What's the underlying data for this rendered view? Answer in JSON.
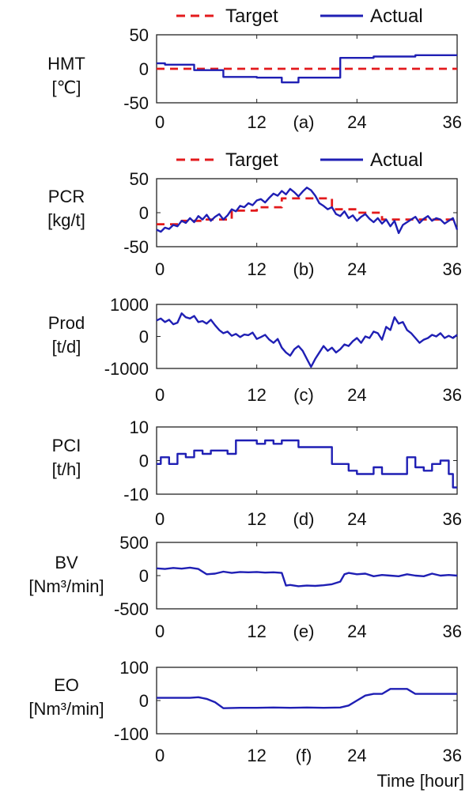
{
  "figure": {
    "x_axis_label": "Time [hour]"
  },
  "chart_data": [
    {
      "type": "line",
      "panel_label": "(a)",
      "ylabel_lines": [
        "HMT",
        "[℃]"
      ],
      "x_ticks": [
        "0",
        "12",
        "24",
        "36"
      ],
      "y_ticks": [
        "50",
        "0",
        "-50"
      ],
      "y_tick_values": [
        50,
        0,
        -50
      ],
      "xlim": [
        0,
        36
      ],
      "ylim": [
        -50,
        50
      ],
      "legend": {
        "position": "top",
        "entries": [
          "Target",
          "Actual"
        ]
      },
      "series": [
        {
          "name": "Target",
          "color": "#e31a1c",
          "style": "dashed",
          "x": [
            0,
            36
          ],
          "y": [
            0,
            0
          ]
        },
        {
          "name": "Actual",
          "color": "#1f1fb4",
          "style": "solid",
          "x": [
            0,
            1,
            1,
            4.5,
            4.5,
            8,
            8,
            12,
            12,
            15,
            15,
            17,
            17,
            22,
            22,
            26,
            26,
            31,
            31,
            36
          ],
          "y": [
            8,
            8,
            6,
            6,
            -2,
            -2,
            -12,
            -12,
            -13,
            -13,
            -20,
            -20,
            -13,
            -13,
            16,
            16,
            18,
            18,
            20,
            20
          ]
        }
      ]
    },
    {
      "type": "line",
      "panel_label": "(b)",
      "ylabel_lines": [
        "PCR",
        "[kg/t]"
      ],
      "x_ticks": [
        "0",
        "12",
        "24",
        "36"
      ],
      "y_ticks": [
        "50",
        "0",
        "-50"
      ],
      "y_tick_values": [
        50,
        0,
        -50
      ],
      "xlim": [
        0,
        36
      ],
      "ylim": [
        -50,
        50
      ],
      "legend": {
        "position": "top",
        "entries": [
          "Target",
          "Actual"
        ]
      },
      "series": [
        {
          "name": "Target",
          "color": "#e31a1c",
          "style": "dashed",
          "x": [
            0,
            3,
            3,
            6,
            6,
            9,
            9,
            12,
            12,
            15,
            15,
            21,
            21,
            24,
            24,
            27,
            27,
            36
          ],
          "y": [
            -17,
            -17,
            -12,
            -12,
            -10,
            -10,
            3,
            3,
            8,
            8,
            21,
            21,
            5,
            5,
            0,
            0,
            -10,
            -10
          ]
        },
        {
          "name": "Actual",
          "color": "#1f1fb4",
          "style": "solid",
          "x": [
            0,
            0.5,
            1,
            1.5,
            2,
            2.5,
            3,
            3.5,
            4,
            4.5,
            5,
            5.5,
            6,
            6.5,
            7,
            7.5,
            8,
            8.5,
            9,
            9.5,
            10,
            10.5,
            11,
            11.5,
            12,
            12.5,
            13,
            13.5,
            14,
            14.5,
            15,
            15.5,
            16,
            16.5,
            17,
            17.5,
            18,
            18.5,
            19,
            19.5,
            20,
            20.5,
            21,
            21.5,
            22,
            22.5,
            23,
            23.5,
            24,
            24.5,
            25,
            25.5,
            26,
            26.5,
            27,
            27.5,
            28,
            28.5,
            29,
            29.5,
            30,
            30.5,
            31,
            31.5,
            32,
            32.5,
            33,
            33.5,
            34,
            34.5,
            35,
            35.5,
            36
          ],
          "y": [
            -25,
            -28,
            -22,
            -24,
            -18,
            -20,
            -12,
            -15,
            -8,
            -14,
            -5,
            -10,
            -3,
            -12,
            -6,
            -2,
            -10,
            -4,
            5,
            2,
            10,
            8,
            14,
            11,
            18,
            20,
            15,
            22,
            28,
            25,
            32,
            27,
            35,
            30,
            24,
            31,
            37,
            33,
            25,
            14,
            10,
            5,
            8,
            -2,
            -5,
            2,
            -8,
            -4,
            -12,
            -6,
            -2,
            -9,
            -14,
            -8,
            -16,
            -10,
            -20,
            -12,
            -30,
            -18,
            -14,
            -10,
            -6,
            -15,
            -9,
            -5,
            -12,
            -8,
            -10,
            -16,
            -12,
            -8,
            -25
          ]
        }
      ]
    },
    {
      "type": "line",
      "panel_label": "(c)",
      "ylabel_lines": [
        "Prod",
        "[t/d]"
      ],
      "x_ticks": [
        "0",
        "12",
        "24",
        "36"
      ],
      "y_ticks": [
        "1000",
        "0",
        "-1000"
      ],
      "y_tick_values": [
        1000,
        0,
        -1000
      ],
      "xlim": [
        0,
        36
      ],
      "ylim": [
        -1000,
        1000
      ],
      "series": [
        {
          "name": "Actual",
          "color": "#1f1fb4",
          "style": "solid",
          "x": [
            0,
            0.5,
            1,
            1.5,
            2,
            2.5,
            3,
            3.5,
            4,
            4.5,
            5,
            5.5,
            6,
            6.5,
            7,
            7.5,
            8,
            8.5,
            9,
            9.5,
            10,
            10.5,
            11,
            11.5,
            12,
            12.5,
            13,
            13.5,
            14,
            14.5,
            15,
            15.5,
            16,
            16.5,
            17,
            17.5,
            18,
            18.5,
            19,
            19.5,
            20,
            20.5,
            21,
            21.5,
            22,
            22.5,
            23,
            23.5,
            24,
            24.5,
            25,
            25.5,
            26,
            26.5,
            27,
            27.5,
            28,
            28.5,
            29,
            29.5,
            30,
            30.5,
            31,
            31.5,
            32,
            32.5,
            33,
            33.5,
            34,
            34.5,
            35,
            35.5,
            36
          ],
          "y": [
            500,
            560,
            450,
            520,
            380,
            430,
            720,
            600,
            560,
            640,
            450,
            480,
            400,
            520,
            350,
            200,
            100,
            150,
            20,
            80,
            -20,
            60,
            40,
            120,
            -80,
            -20,
            50,
            -100,
            -200,
            -80,
            -350,
            -500,
            -600,
            -400,
            -300,
            -450,
            -700,
            -950,
            -700,
            -500,
            -300,
            -450,
            -350,
            -500,
            -400,
            -250,
            -300,
            -150,
            -50,
            -200,
            0,
            -50,
            150,
            100,
            -100,
            300,
            200,
            600,
            400,
            450,
            200,
            100,
            -50,
            -200,
            -100,
            -50,
            50,
            0,
            100,
            -50,
            20,
            -50,
            50
          ]
        }
      ]
    },
    {
      "type": "line",
      "panel_label": "(d)",
      "ylabel_lines": [
        "PCI",
        "[t/h]"
      ],
      "x_ticks": [
        "0",
        "12",
        "24",
        "36"
      ],
      "y_ticks": [
        "10",
        "0",
        "-10"
      ],
      "y_tick_values": [
        10,
        0,
        -10
      ],
      "xlim": [
        0,
        36
      ],
      "ylim": [
        -10,
        10
      ],
      "series": [
        {
          "name": "Actual",
          "color": "#1f1fb4",
          "style": "solid",
          "x": [
            0,
            0.5,
            0.5,
            1.5,
            1.5,
            2.5,
            2.5,
            3.5,
            3.5,
            4.5,
            4.5,
            5.5,
            5.5,
            6.5,
            6.5,
            8.5,
            8.5,
            9.5,
            9.5,
            12,
            12,
            13,
            13,
            14,
            14,
            15,
            15,
            17,
            17,
            19,
            19,
            21,
            21,
            22,
            22,
            23,
            23,
            24,
            24,
            26,
            26,
            27,
            27,
            28,
            28,
            30,
            30,
            31,
            31,
            32,
            32,
            33,
            33,
            34,
            34,
            35,
            35,
            35.5,
            35.5,
            36
          ],
          "y": [
            -1,
            -1,
            1,
            1,
            -1,
            -1,
            2,
            2,
            1,
            1,
            3,
            3,
            2,
            2,
            3,
            3,
            2,
            2,
            6,
            6,
            5,
            5,
            6,
            6,
            5,
            5,
            6,
            6,
            4,
            4,
            4,
            4,
            -1,
            -1,
            -1,
            -1,
            -3,
            -3,
            -4,
            -4,
            -2,
            -2,
            -4,
            -4,
            -4,
            -4,
            1,
            1,
            -2,
            -2,
            -3,
            -3,
            -1,
            -1,
            0,
            0,
            -4,
            -4,
            -8,
            -8
          ]
        }
      ]
    },
    {
      "type": "line",
      "panel_label": "(e)",
      "ylabel_lines": [
        "BV",
        "[Nm³/min]"
      ],
      "x_ticks": [
        "0",
        "12",
        "24",
        "36"
      ],
      "y_ticks": [
        "500",
        "0",
        "-500"
      ],
      "y_tick_values": [
        500,
        0,
        -500
      ],
      "xlim": [
        0,
        36
      ],
      "ylim": [
        -500,
        500
      ],
      "series": [
        {
          "name": "Actual",
          "color": "#1f1fb4",
          "style": "solid",
          "x": [
            0,
            1,
            2,
            3,
            4,
            5,
            6,
            7,
            8,
            9,
            10,
            11,
            12,
            13,
            14,
            15,
            15.5,
            16,
            17,
            18,
            19,
            20,
            21,
            22,
            22.5,
            23,
            24,
            25,
            26,
            27,
            28,
            29,
            30,
            31,
            32,
            33,
            34,
            35,
            36
          ],
          "y": [
            110,
            100,
            115,
            105,
            120,
            100,
            20,
            30,
            60,
            40,
            55,
            50,
            55,
            45,
            50,
            40,
            -150,
            -140,
            -160,
            -150,
            -155,
            -145,
            -130,
            -90,
            20,
            40,
            20,
            30,
            -10,
            10,
            0,
            -10,
            20,
            0,
            -10,
            30,
            0,
            10,
            0
          ]
        }
      ]
    },
    {
      "type": "line",
      "panel_label": "(f)",
      "ylabel_lines": [
        "EO",
        "[Nm³/min]"
      ],
      "x_ticks": [
        "0",
        "12",
        "24",
        "36"
      ],
      "y_ticks": [
        "100",
        "0",
        "-100"
      ],
      "y_tick_values": [
        100,
        0,
        -100
      ],
      "xlim": [
        0,
        36
      ],
      "ylim": [
        -100,
        100
      ],
      "series": [
        {
          "name": "Actual",
          "color": "#1f1fb4",
          "style": "solid",
          "x": [
            0,
            2,
            4,
            5,
            6,
            7,
            8,
            10,
            12,
            14,
            16,
            18,
            20,
            22,
            23,
            24,
            25,
            26,
            27,
            28,
            29,
            30,
            31,
            33,
            36
          ],
          "y": [
            8,
            8,
            8,
            10,
            5,
            -5,
            -23,
            -22,
            -22,
            -21,
            -22,
            -21,
            -22,
            -21,
            -15,
            0,
            15,
            20,
            20,
            35,
            35,
            35,
            20,
            20,
            20
          ]
        }
      ]
    }
  ]
}
